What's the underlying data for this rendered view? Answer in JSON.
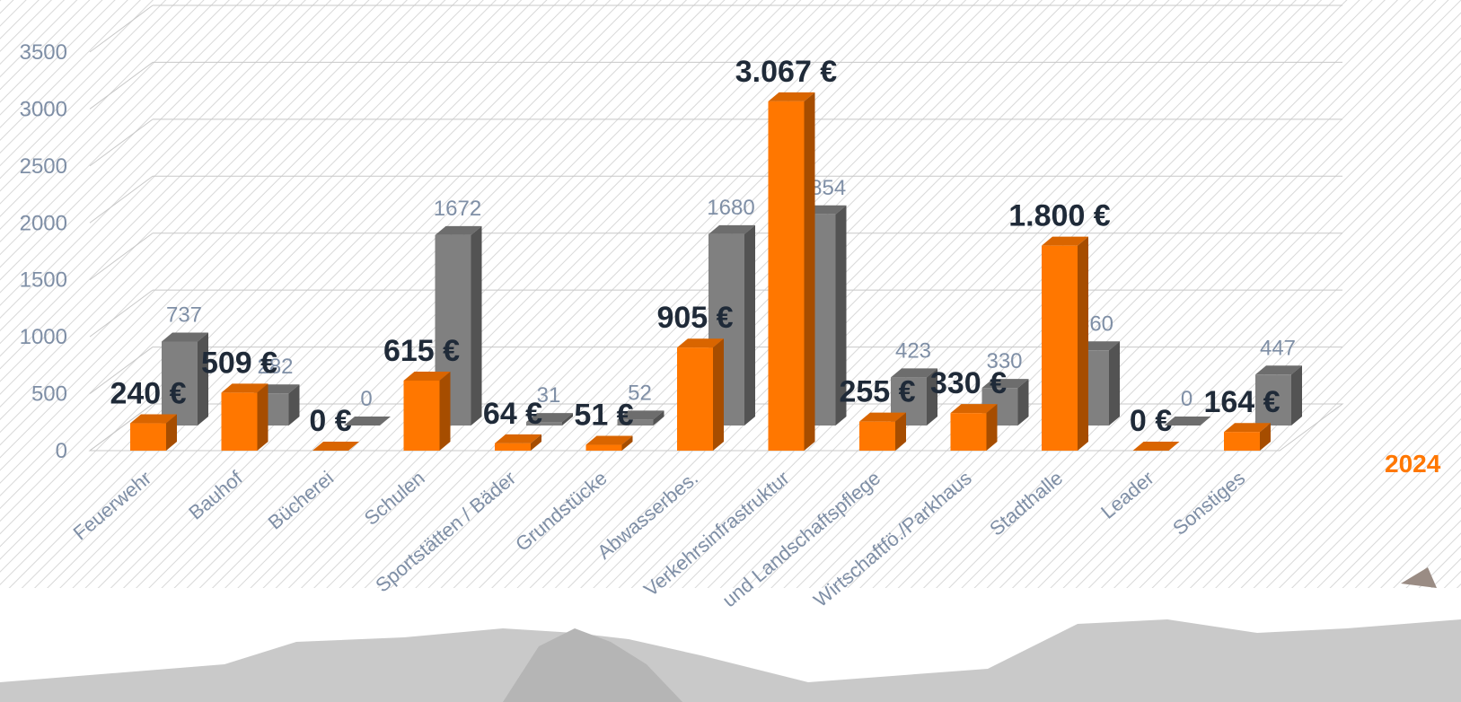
{
  "chart_data": {
    "type": "bar3d",
    "categories": [
      "Feuerwehr",
      "Bauhof",
      "Bücherei",
      "Schulen",
      "Sportstätten / Bäder",
      "Grundstücke",
      "Abwasserbes.",
      "Verkehrsinfrastruktur",
      "und Landschaftspflege",
      "Wirtschaftfö./Parkhaus",
      "Stadthalle",
      "Leader",
      "Sonstiges"
    ],
    "series": [
      {
        "name": "2024",
        "color": "#ff7700",
        "values": [
          240,
          509,
          0,
          615,
          64,
          51,
          905,
          3067,
          255,
          330,
          1800,
          0,
          164
        ],
        "value_labels": [
          "240 €",
          "509 €",
          "0 €",
          "615 €",
          "64 €",
          "51 €",
          "905 €",
          "3.067 €",
          "255 €",
          "330 €",
          "1.800 €",
          "0 €",
          "164 €"
        ]
      },
      {
        "color": "#808080",
        "values": [
          737,
          282,
          0,
          1672,
          31,
          52,
          1680,
          1854,
          423,
          330,
          660,
          0,
          447
        ]
      }
    ],
    "ylim": [
      0,
      3500
    ],
    "yticks": [
      0,
      500,
      1000,
      1500,
      2000,
      2500,
      3000,
      3500
    ],
    "grid": true
  }
}
